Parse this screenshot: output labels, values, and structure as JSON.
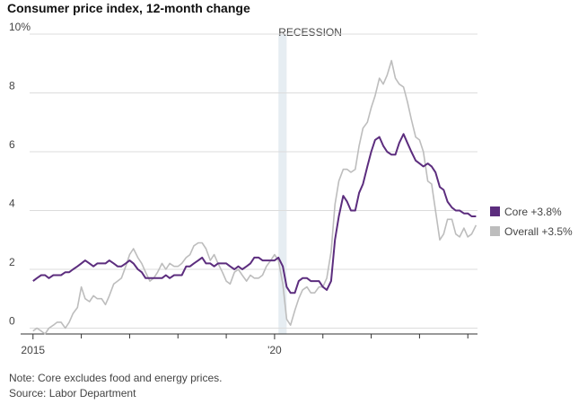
{
  "chart_data": {
    "type": "line",
    "title": "Consumer price index, 12-month change",
    "note": "Note: Core excludes food and energy prices.",
    "source": "Source: Labor Department",
    "recession": {
      "label": "RECESSION",
      "start": 2020.08,
      "end": 2020.25
    },
    "x": [
      2015,
      2015.08,
      2015.17,
      2015.25,
      2015.33,
      2015.42,
      2015.5,
      2015.58,
      2015.67,
      2015.75,
      2015.83,
      2015.92,
      2016,
      2016.08,
      2016.17,
      2016.25,
      2016.33,
      2016.42,
      2016.5,
      2016.58,
      2016.67,
      2016.75,
      2016.83,
      2016.92,
      2017,
      2017.08,
      2017.17,
      2017.25,
      2017.33,
      2017.42,
      2017.5,
      2017.58,
      2017.67,
      2017.75,
      2017.83,
      2017.92,
      2018,
      2018.08,
      2018.17,
      2018.25,
      2018.33,
      2018.42,
      2018.5,
      2018.58,
      2018.67,
      2018.75,
      2018.83,
      2018.92,
      2019,
      2019.08,
      2019.17,
      2019.25,
      2019.33,
      2019.42,
      2019.5,
      2019.58,
      2019.67,
      2019.75,
      2019.83,
      2019.92,
      2020,
      2020.08,
      2020.17,
      2020.25,
      2020.33,
      2020.42,
      2020.5,
      2020.58,
      2020.67,
      2020.75,
      2020.83,
      2020.92,
      2021,
      2021.08,
      2021.17,
      2021.25,
      2021.33,
      2021.42,
      2021.5,
      2021.58,
      2021.67,
      2021.75,
      2021.83,
      2021.92,
      2022,
      2022.08,
      2022.17,
      2022.25,
      2022.33,
      2022.42,
      2022.5,
      2022.58,
      2022.67,
      2022.75,
      2022.83,
      2022.92,
      2023,
      2023.08,
      2023.17,
      2023.25,
      2023.33,
      2023.42,
      2023.5,
      2023.58,
      2023.67,
      2023.75,
      2023.83,
      2023.92,
      2024,
      2024.08,
      2024.17
    ],
    "series": [
      {
        "name": "Overall +3.5%",
        "color": "#bdbdbd",
        "values": [
          -0.1,
          0.0,
          -0.1,
          -0.2,
          0.0,
          0.1,
          0.2,
          0.2,
          0.0,
          0.2,
          0.5,
          0.7,
          1.4,
          1.0,
          0.9,
          1.1,
          1.0,
          1.0,
          0.8,
          1.1,
          1.5,
          1.6,
          1.7,
          2.1,
          2.5,
          2.7,
          2.4,
          2.2,
          1.9,
          1.6,
          1.7,
          1.9,
          2.2,
          2.0,
          2.2,
          2.1,
          2.1,
          2.2,
          2.4,
          2.5,
          2.8,
          2.9,
          2.9,
          2.7,
          2.3,
          2.5,
          2.2,
          1.9,
          1.6,
          1.5,
          1.9,
          2.0,
          1.8,
          1.6,
          1.8,
          1.7,
          1.7,
          1.8,
          2.1,
          2.3,
          2.5,
          2.3,
          1.5,
          0.3,
          0.1,
          0.6,
          1.0,
          1.3,
          1.4,
          1.2,
          1.2,
          1.4,
          1.4,
          1.7,
          2.6,
          4.2,
          5.0,
          5.4,
          5.4,
          5.3,
          5.4,
          6.2,
          6.8,
          7.0,
          7.5,
          7.9,
          8.5,
          8.3,
          8.6,
          9.1,
          8.5,
          8.3,
          8.2,
          7.7,
          7.1,
          6.5,
          6.4,
          6.0,
          5.0,
          4.9,
          4.0,
          3.0,
          3.2,
          3.7,
          3.7,
          3.2,
          3.1,
          3.4,
          3.1,
          3.2,
          3.5
        ]
      },
      {
        "name": "Core +3.8%",
        "color": "#5c2d7e",
        "values": [
          1.6,
          1.7,
          1.8,
          1.8,
          1.7,
          1.8,
          1.8,
          1.8,
          1.9,
          1.9,
          2.0,
          2.1,
          2.2,
          2.3,
          2.2,
          2.1,
          2.2,
          2.2,
          2.2,
          2.3,
          2.2,
          2.1,
          2.1,
          2.2,
          2.3,
          2.2,
          2.0,
          1.9,
          1.7,
          1.7,
          1.7,
          1.7,
          1.7,
          1.8,
          1.7,
          1.8,
          1.8,
          1.8,
          2.1,
          2.1,
          2.2,
          2.3,
          2.4,
          2.2,
          2.2,
          2.1,
          2.2,
          2.2,
          2.2,
          2.1,
          2.0,
          2.1,
          2.0,
          2.1,
          2.2,
          2.4,
          2.4,
          2.3,
          2.3,
          2.3,
          2.3,
          2.4,
          2.1,
          1.4,
          1.2,
          1.2,
          1.6,
          1.7,
          1.7,
          1.6,
          1.6,
          1.6,
          1.4,
          1.3,
          1.6,
          3.0,
          3.8,
          4.5,
          4.3,
          4.0,
          4.0,
          4.6,
          4.9,
          5.5,
          6.0,
          6.4,
          6.5,
          6.2,
          6.0,
          5.9,
          5.9,
          6.3,
          6.6,
          6.3,
          6.0,
          5.7,
          5.6,
          5.5,
          5.6,
          5.5,
          5.3,
          4.8,
          4.7,
          4.3,
          4.1,
          4.0,
          4.0,
          3.9,
          3.9,
          3.8,
          3.8
        ]
      }
    ],
    "xlim": [
      2014.93,
      2024.2
    ],
    "xticks": [
      2015,
      {
        "value": 2020,
        "label": "'20"
      }
    ],
    "xminor_ticks": [
      2016,
      2017,
      2018,
      2019,
      2021,
      2022,
      2023,
      2024
    ],
    "ylim": [
      -0.2,
      10
    ],
    "yticks": [
      0,
      2,
      4,
      6,
      8,
      {
        "value": 10,
        "label": "10%"
      }
    ],
    "grid": true,
    "legend": "right"
  }
}
